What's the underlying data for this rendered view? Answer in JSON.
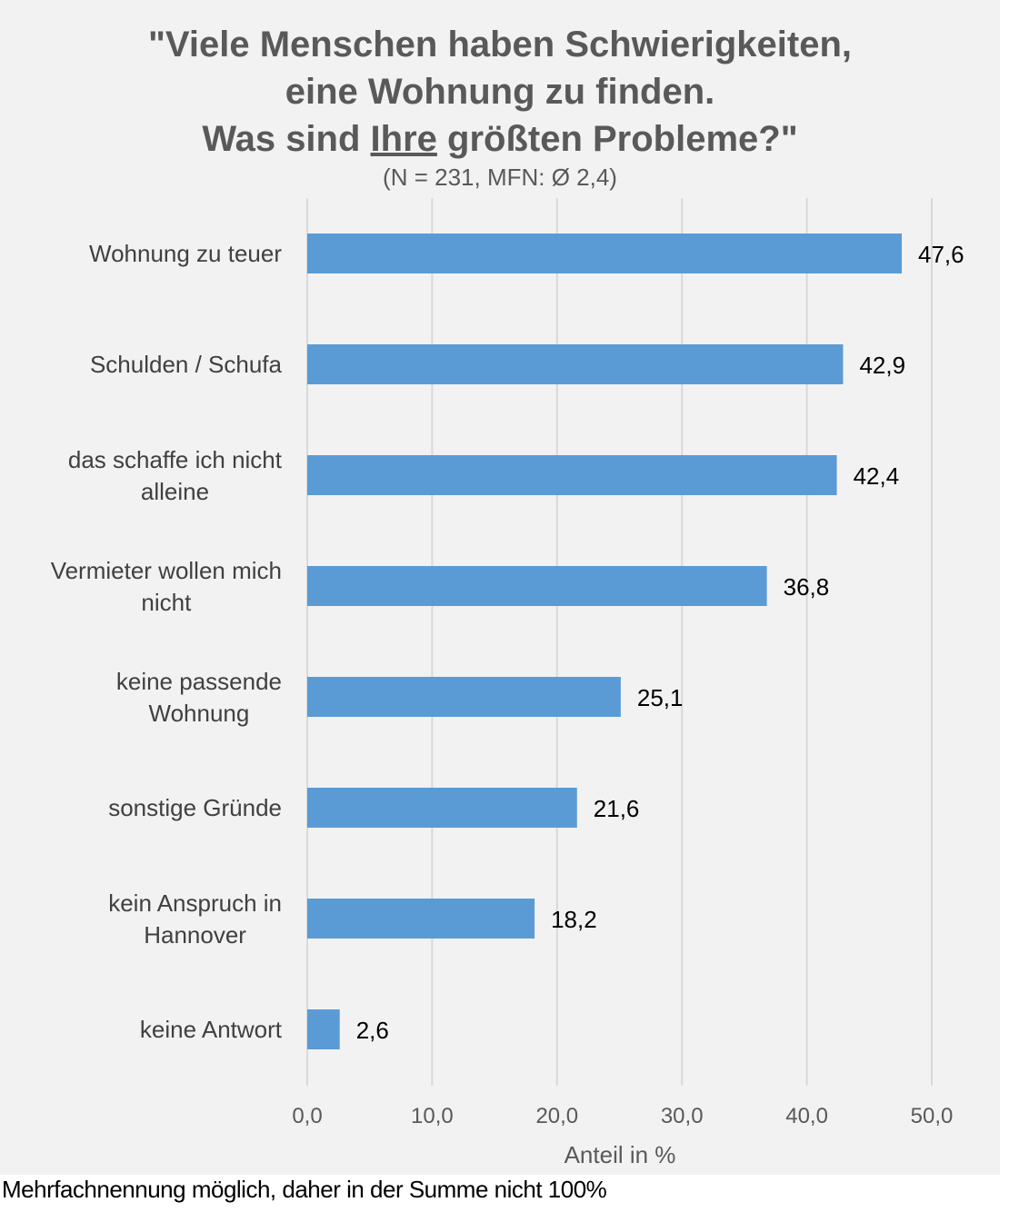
{
  "chart_data": {
    "type": "bar",
    "orientation": "horizontal",
    "title_parts": [
      "\"Viele Menschen haben Schwierigkeiten,",
      "eine Wohnung zu finden.",
      "Was sind ",
      "Ihre",
      " größten Probleme?\""
    ],
    "subtitle": "(N = 231, MFN: Ø 2,4)",
    "categories": [
      [
        "Wohnung zu teuer"
      ],
      [
        "Schulden / Schufa"
      ],
      [
        "das schaffe ich nicht",
        "alleine"
      ],
      [
        "Vermieter wollen mich",
        "nicht"
      ],
      [
        "keine passende",
        "Wohnung"
      ],
      [
        "sonstige Gründe"
      ],
      [
        "kein Anspruch in",
        "Hannover"
      ],
      [
        "keine Antwort"
      ]
    ],
    "values": [
      47.6,
      42.9,
      42.4,
      36.8,
      25.1,
      21.6,
      18.2,
      2.6
    ],
    "value_labels": [
      "47,6",
      "42,9",
      "42,4",
      "36,8",
      "25,1",
      "21,6",
      "18,2",
      "2,6"
    ],
    "xlabel": "Anteil in %",
    "xlim": [
      0,
      50
    ],
    "xticks": [
      0,
      10,
      20,
      30,
      40,
      50
    ],
    "xtick_labels": [
      "0,0",
      "10,0",
      "20,0",
      "30,0",
      "40,0",
      "50,0"
    ],
    "grid": "vertical",
    "legend": "none",
    "bar_color": "#5b9bd5"
  },
  "footnote": "Mehrfachnennung möglich, daher in der Summe nicht 100%"
}
